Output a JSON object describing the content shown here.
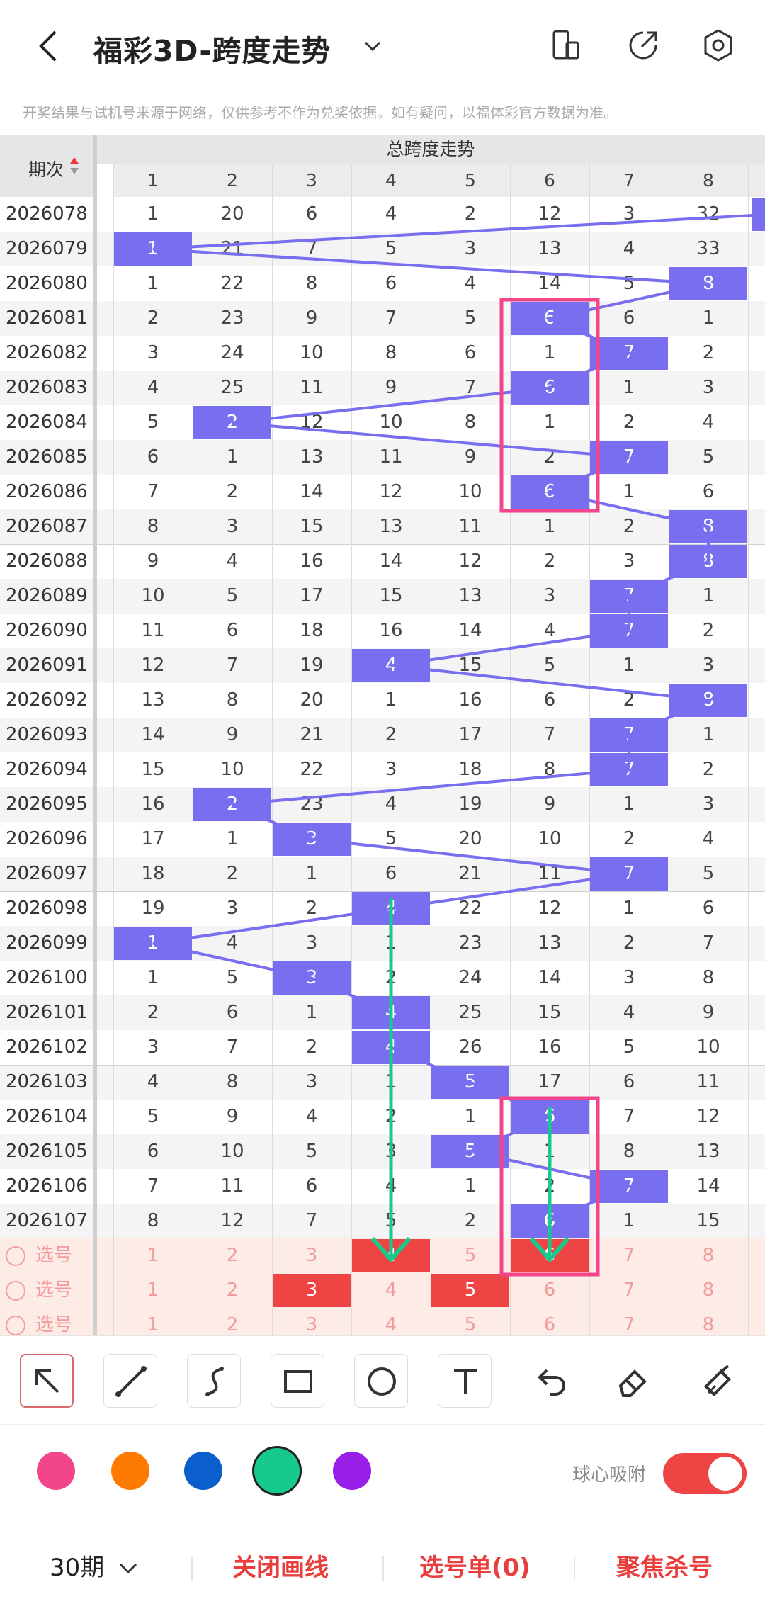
{
  "header": {
    "title": "福彩3D-跨度走势",
    "notice": "开奖结果与试机号来源于网络，仅供参考不作为兑奖依据。如有疑问，以福体彩官方数据为准。"
  },
  "table": {
    "left_header": "期次",
    "top_header": "总跨度走势",
    "columns": [
      "1",
      "2",
      "3",
      "4",
      "5",
      "6",
      "7",
      "8"
    ],
    "rows": [
      {
        "period": "2026078",
        "cells": [
          "1",
          "20",
          "6",
          "4",
          "2",
          "12",
          "3",
          "32"
        ],
        "hit": null
      },
      {
        "period": "2026079",
        "cells": [
          "1",
          "21",
          "7",
          "5",
          "3",
          "13",
          "4",
          "33"
        ],
        "hit": 0
      },
      {
        "period": "2026080",
        "cells": [
          "1",
          "22",
          "8",
          "6",
          "4",
          "14",
          "5",
          "8"
        ],
        "hit": 7
      },
      {
        "period": "2026081",
        "cells": [
          "2",
          "23",
          "9",
          "7",
          "5",
          "6",
          "6",
          "1"
        ],
        "hit": 5
      },
      {
        "period": "2026082",
        "cells": [
          "3",
          "24",
          "10",
          "8",
          "6",
          "1",
          "7",
          "2"
        ],
        "hit": 6
      },
      {
        "period": "2026083",
        "cells": [
          "4",
          "25",
          "11",
          "9",
          "7",
          "6",
          "1",
          "3"
        ],
        "hit": 5
      },
      {
        "period": "2026084",
        "cells": [
          "5",
          "2",
          "12",
          "10",
          "8",
          "1",
          "2",
          "4"
        ],
        "hit": 1
      },
      {
        "period": "2026085",
        "cells": [
          "6",
          "1",
          "13",
          "11",
          "9",
          "2",
          "7",
          "5"
        ],
        "hit": 6
      },
      {
        "period": "2026086",
        "cells": [
          "7",
          "2",
          "14",
          "12",
          "10",
          "6",
          "1",
          "6"
        ],
        "hit": 5
      },
      {
        "period": "2026087",
        "cells": [
          "8",
          "3",
          "15",
          "13",
          "11",
          "1",
          "2",
          "8"
        ],
        "hit": 7
      },
      {
        "period": "2026088",
        "cells": [
          "9",
          "4",
          "16",
          "14",
          "12",
          "2",
          "3",
          "8"
        ],
        "hit": 7
      },
      {
        "period": "2026089",
        "cells": [
          "10",
          "5",
          "17",
          "15",
          "13",
          "3",
          "7",
          "1"
        ],
        "hit": 6
      },
      {
        "period": "2026090",
        "cells": [
          "11",
          "6",
          "18",
          "16",
          "14",
          "4",
          "7",
          "2"
        ],
        "hit": 6
      },
      {
        "period": "2026091",
        "cells": [
          "12",
          "7",
          "19",
          "4",
          "15",
          "5",
          "1",
          "3"
        ],
        "hit": 3
      },
      {
        "period": "2026092",
        "cells": [
          "13",
          "8",
          "20",
          "1",
          "16",
          "6",
          "2",
          "8"
        ],
        "hit": 7
      },
      {
        "period": "2026093",
        "cells": [
          "14",
          "9",
          "21",
          "2",
          "17",
          "7",
          "7",
          "1"
        ],
        "hit": 6
      },
      {
        "period": "2026094",
        "cells": [
          "15",
          "10",
          "22",
          "3",
          "18",
          "8",
          "7",
          "2"
        ],
        "hit": 6
      },
      {
        "period": "2026095",
        "cells": [
          "16",
          "2",
          "23",
          "4",
          "19",
          "9",
          "1",
          "3"
        ],
        "hit": 1
      },
      {
        "period": "2026096",
        "cells": [
          "17",
          "1",
          "3",
          "5",
          "20",
          "10",
          "2",
          "4"
        ],
        "hit": 2
      },
      {
        "period": "2026097",
        "cells": [
          "18",
          "2",
          "1",
          "6",
          "21",
          "11",
          "7",
          "5"
        ],
        "hit": 6
      },
      {
        "period": "2026098",
        "cells": [
          "19",
          "3",
          "2",
          "4",
          "22",
          "12",
          "1",
          "6"
        ],
        "hit": 3
      },
      {
        "period": "2026099",
        "cells": [
          "1",
          "4",
          "3",
          "1",
          "23",
          "13",
          "2",
          "7"
        ],
        "hit": 0
      },
      {
        "period": "2026100",
        "cells": [
          "1",
          "5",
          "3",
          "2",
          "24",
          "14",
          "3",
          "8"
        ],
        "hit": 2
      },
      {
        "period": "2026101",
        "cells": [
          "2",
          "6",
          "1",
          "4",
          "25",
          "15",
          "4",
          "9"
        ],
        "hit": 3
      },
      {
        "period": "2026102",
        "cells": [
          "3",
          "7",
          "2",
          "4",
          "26",
          "16",
          "5",
          "10"
        ],
        "hit": 3
      },
      {
        "period": "2026103",
        "cells": [
          "4",
          "8",
          "3",
          "1",
          "5",
          "17",
          "6",
          "11"
        ],
        "hit": 4
      },
      {
        "period": "2026104",
        "cells": [
          "5",
          "9",
          "4",
          "2",
          "1",
          "6",
          "7",
          "12"
        ],
        "hit": 5
      },
      {
        "period": "2026105",
        "cells": [
          "6",
          "10",
          "5",
          "3",
          "5",
          "1",
          "8",
          "13"
        ],
        "hit": 4
      },
      {
        "period": "2026106",
        "cells": [
          "7",
          "11",
          "6",
          "4",
          "1",
          "2",
          "7",
          "14"
        ],
        "hit": 6
      },
      {
        "period": "2026107",
        "cells": [
          "8",
          "12",
          "7",
          "5",
          "2",
          "6",
          "1",
          "15"
        ],
        "hit": 5
      }
    ],
    "pick_rows": [
      {
        "label": "选号",
        "cells": [
          "1",
          "2",
          "3",
          "4",
          "5",
          "6",
          "7",
          "8"
        ],
        "selected": [
          3,
          5
        ]
      },
      {
        "label": "选号",
        "cells": [
          "1",
          "2",
          "3",
          "4",
          "5",
          "6",
          "7",
          "8"
        ],
        "selected": [
          2,
          4
        ]
      },
      {
        "label": "选号",
        "cells": [
          "1",
          "2",
          "3",
          "4",
          "5",
          "6",
          "7",
          "8"
        ],
        "selected": []
      }
    ]
  },
  "toolbar": {
    "tools": [
      "pointer-icon",
      "line-icon",
      "curve-icon",
      "rectangle-icon",
      "circle-icon",
      "text-icon",
      "undo-icon",
      "eraser-icon",
      "clear-icon"
    ],
    "colors": [
      "#f2458a",
      "#ff7a00",
      "#0a5fcc",
      "#16c98d",
      "#9a1fe8"
    ],
    "selected_color": "#16c98d",
    "snap_label": "球心吸附",
    "snap_on": true
  },
  "bottom": {
    "periods_label": "30期",
    "close_draw": "关闭画线",
    "pick_list": "选号单(0)",
    "focus_kill": "聚焦杀号"
  }
}
